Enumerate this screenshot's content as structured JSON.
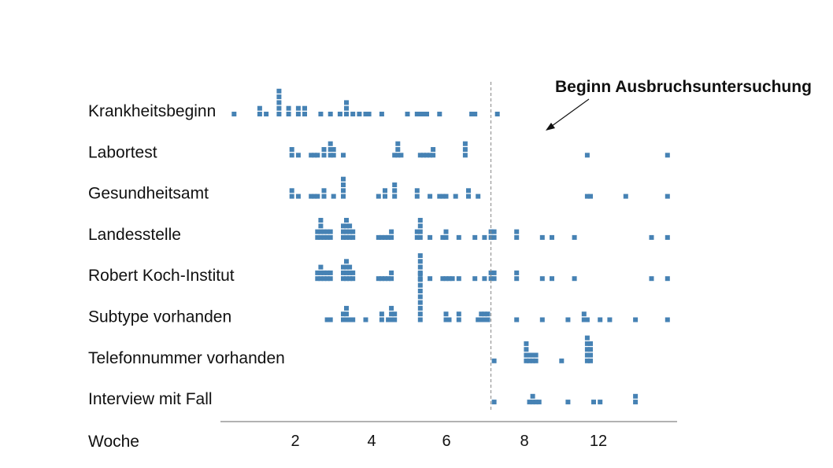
{
  "chart_data": {
    "type": "scatter",
    "title": "",
    "xlabel": "Woche",
    "ylabel": "",
    "xlim": [
      0,
      14.1
    ],
    "grid": false,
    "x_ticks": [
      2,
      4,
      6,
      8,
      12
    ],
    "series_color": "#4682b4",
    "annotation": {
      "text": "Beginn Ausbruchsuntersuchung",
      "x": 8.4
    },
    "rows": [
      {
        "label": "Krankheitsbeginn",
        "stacks": [
          [
            0.4,
            1
          ],
          [
            1.2,
            2
          ],
          [
            1.4,
            1
          ],
          [
            1.8,
            5
          ],
          [
            2.1,
            2
          ],
          [
            2.4,
            2
          ],
          [
            2.6,
            2
          ],
          [
            3.1,
            1
          ],
          [
            3.4,
            1
          ],
          [
            3.7,
            1
          ],
          [
            3.9,
            3
          ],
          [
            4.1,
            1
          ],
          [
            4.3,
            1
          ],
          [
            4.5,
            1
          ],
          [
            4.6,
            1
          ],
          [
            5.0,
            1
          ],
          [
            5.8,
            1
          ],
          [
            6.1,
            1
          ],
          [
            6.2,
            1
          ],
          [
            6.3,
            1
          ],
          [
            6.4,
            1
          ],
          [
            6.8,
            1
          ],
          [
            7.8,
            1
          ],
          [
            7.9,
            1
          ],
          [
            8.6,
            1
          ]
        ]
      },
      {
        "label": "Labortest",
        "stacks": [
          [
            2.2,
            2
          ],
          [
            2.4,
            1
          ],
          [
            2.8,
            1
          ],
          [
            2.9,
            1
          ],
          [
            3.0,
            1
          ],
          [
            3.2,
            2
          ],
          [
            3.4,
            3
          ],
          [
            3.5,
            2
          ],
          [
            3.8,
            1
          ],
          [
            5.4,
            1
          ],
          [
            5.5,
            3
          ],
          [
            5.6,
            1
          ],
          [
            6.2,
            1
          ],
          [
            6.3,
            1
          ],
          [
            6.4,
            1
          ],
          [
            6.5,
            1
          ],
          [
            6.6,
            2
          ],
          [
            7.6,
            3
          ],
          [
            11.4,
            1
          ],
          [
            13.9,
            1
          ]
        ]
      },
      {
        "label": "Gesundheitsamt",
        "stacks": [
          [
            2.2,
            2
          ],
          [
            2.4,
            1
          ],
          [
            2.8,
            1
          ],
          [
            2.9,
            1
          ],
          [
            3.0,
            1
          ],
          [
            3.2,
            2
          ],
          [
            3.5,
            1
          ],
          [
            3.8,
            4
          ],
          [
            4.9,
            1
          ],
          [
            5.1,
            2
          ],
          [
            5.4,
            3
          ],
          [
            6.1,
            2
          ],
          [
            6.5,
            1
          ],
          [
            6.8,
            1
          ],
          [
            6.9,
            1
          ],
          [
            7.0,
            1
          ],
          [
            7.3,
            1
          ],
          [
            7.7,
            2
          ],
          [
            8.0,
            1
          ],
          [
            11.4,
            1
          ],
          [
            11.5,
            1
          ],
          [
            12.6,
            1
          ],
          [
            13.9,
            1
          ]
        ]
      },
      {
        "label": "Landesstelle",
        "stacks": [
          [
            3.0,
            2
          ],
          [
            3.1,
            4
          ],
          [
            3.2,
            2
          ],
          [
            3.3,
            2
          ],
          [
            3.4,
            2
          ],
          [
            3.8,
            3
          ],
          [
            3.9,
            4
          ],
          [
            4.0,
            3
          ],
          [
            4.1,
            2
          ],
          [
            4.9,
            1
          ],
          [
            5.0,
            1
          ],
          [
            5.1,
            1
          ],
          [
            5.2,
            1
          ],
          [
            5.3,
            2
          ],
          [
            6.1,
            2
          ],
          [
            6.2,
            4
          ],
          [
            6.5,
            1
          ],
          [
            6.9,
            1
          ],
          [
            7.0,
            2
          ],
          [
            7.4,
            1
          ],
          [
            7.9,
            1
          ],
          [
            8.2,
            1
          ],
          [
            8.4,
            2
          ],
          [
            8.5,
            2
          ],
          [
            9.2,
            2
          ],
          [
            10.0,
            1
          ],
          [
            10.3,
            1
          ],
          [
            11.0,
            1
          ],
          [
            13.4,
            1
          ],
          [
            13.9,
            1
          ]
        ]
      },
      {
        "label": "Robert Koch-Institut",
        "stacks": [
          [
            3.0,
            2
          ],
          [
            3.1,
            3
          ],
          [
            3.2,
            2
          ],
          [
            3.3,
            2
          ],
          [
            3.4,
            2
          ],
          [
            3.8,
            3
          ],
          [
            3.9,
            4
          ],
          [
            4.0,
            3
          ],
          [
            4.1,
            2
          ],
          [
            4.9,
            1
          ],
          [
            5.0,
            1
          ],
          [
            5.1,
            1
          ],
          [
            5.2,
            1
          ],
          [
            5.3,
            2
          ],
          [
            6.2,
            5
          ],
          [
            6.5,
            1
          ],
          [
            6.9,
            1
          ],
          [
            7.0,
            1
          ],
          [
            7.1,
            1
          ],
          [
            7.2,
            1
          ],
          [
            7.4,
            1
          ],
          [
            7.9,
            1
          ],
          [
            8.2,
            1
          ],
          [
            8.4,
            2
          ],
          [
            8.5,
            2
          ],
          [
            9.2,
            2
          ],
          [
            10.0,
            1
          ],
          [
            10.3,
            1
          ],
          [
            11.0,
            1
          ],
          [
            13.4,
            1
          ],
          [
            13.9,
            1
          ]
        ]
      },
      {
        "label": "Subtype vorhanden",
        "stacks": [
          [
            3.3,
            1
          ],
          [
            3.4,
            1
          ],
          [
            3.8,
            2
          ],
          [
            3.9,
            3
          ],
          [
            4.0,
            1
          ],
          [
            4.1,
            1
          ],
          [
            4.5,
            1
          ],
          [
            5.0,
            2
          ],
          [
            5.2,
            1
          ],
          [
            5.3,
            3
          ],
          [
            5.4,
            2
          ],
          [
            6.2,
            9
          ],
          [
            7.0,
            2
          ],
          [
            7.1,
            1
          ],
          [
            7.4,
            2
          ],
          [
            8.0,
            1
          ],
          [
            8.1,
            2
          ],
          [
            8.2,
            2
          ],
          [
            8.3,
            2
          ],
          [
            9.2,
            1
          ],
          [
            10.0,
            1
          ],
          [
            10.8,
            1
          ],
          [
            11.3,
            2
          ],
          [
            11.4,
            1
          ],
          [
            11.8,
            1
          ],
          [
            12.1,
            1
          ],
          [
            12.9,
            1
          ],
          [
            13.9,
            1
          ]
        ]
      },
      {
        "label": "Telefonnummer vorhanden",
        "stacks": [
          [
            8.5,
            1
          ],
          [
            9.5,
            4
          ],
          [
            9.6,
            2
          ],
          [
            9.7,
            2
          ],
          [
            9.8,
            2
          ],
          [
            10.6,
            1
          ],
          [
            11.4,
            5
          ],
          [
            11.5,
            4
          ]
        ]
      },
      {
        "label": "Interview mit Fall",
        "stacks": [
          [
            8.5,
            1
          ],
          [
            9.6,
            1
          ],
          [
            9.7,
            2
          ],
          [
            9.8,
            1
          ],
          [
            9.9,
            1
          ],
          [
            10.8,
            1
          ],
          [
            11.6,
            1
          ],
          [
            11.8,
            1
          ],
          [
            12.9,
            2
          ]
        ]
      }
    ]
  }
}
